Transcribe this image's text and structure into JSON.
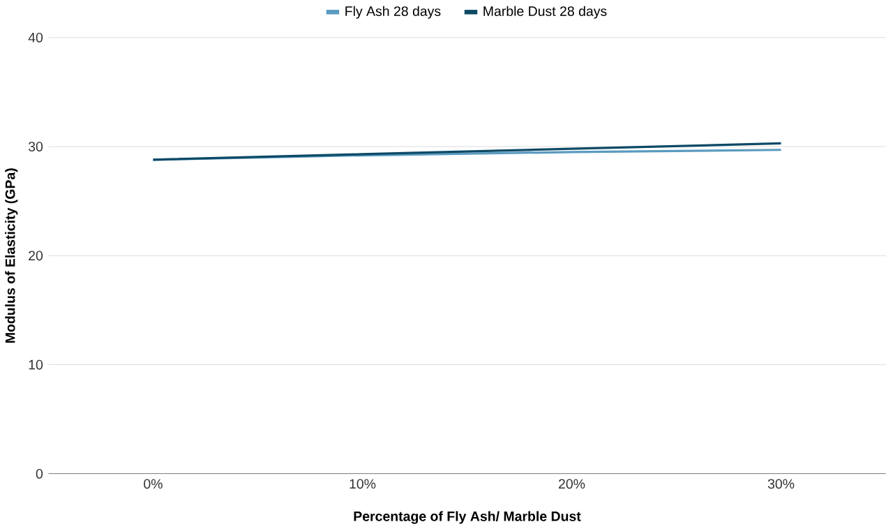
{
  "chart_data": {
    "type": "line",
    "xlabel": "Percentage of Fly Ash/ Marble Dust",
    "ylabel": "Modulus of Elasticity (GPa)",
    "categories": [
      "0%",
      "10%",
      "20%",
      "30%"
    ],
    "series": [
      {
        "name": "Fly Ash 28 days",
        "color": "#5a9bc0",
        "values": [
          28.8,
          29.2,
          29.5,
          29.7
        ]
      },
      {
        "name": "Marble Dust 28 days",
        "color": "#0d4a66",
        "values": [
          28.8,
          29.3,
          29.8,
          30.3
        ]
      }
    ],
    "ylim": [
      0,
      40
    ],
    "yticks": [
      0,
      10,
      20,
      30,
      40
    ],
    "grid": "y",
    "legend": "top",
    "marker": "none",
    "line_style": "solid"
  }
}
